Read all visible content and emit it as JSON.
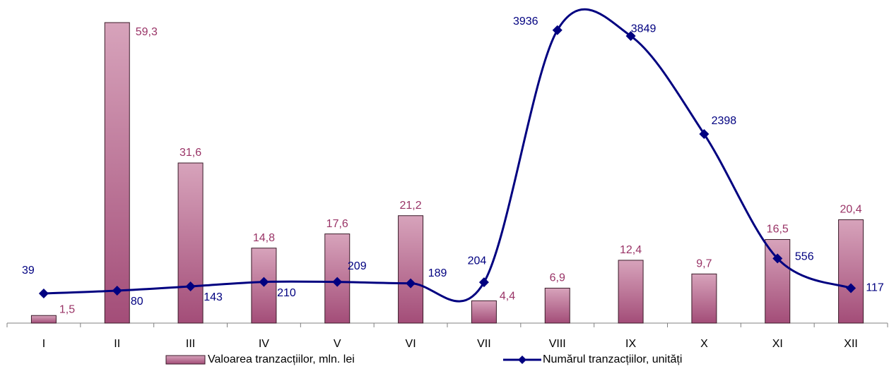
{
  "chart_data": {
    "type": "bar-line",
    "categories": [
      "I",
      "II",
      "III",
      "IV",
      "V",
      "VI",
      "VII",
      "VIII",
      "IX",
      "X",
      "XI",
      "XII"
    ],
    "series": [
      {
        "name": "Valoarea tranzacțiilor, mln. lei",
        "type": "bar",
        "color": "#a34d78",
        "label_color": "#993366",
        "values": [
          1.5,
          59.3,
          31.6,
          14.8,
          17.6,
          21.2,
          4.4,
          6.9,
          12.4,
          9.7,
          16.5,
          20.4
        ],
        "value_labels": [
          "1,5",
          "59,3",
          "31,6",
          "14,8",
          "17,6",
          "21,2",
          "4,4",
          "6,9",
          "12,4",
          "9,7",
          "16,5",
          "20,4"
        ]
      },
      {
        "name": "Numărul tranzacțiilor, unități",
        "type": "line",
        "axis": "y2",
        "color": "#000080",
        "values": [
          39,
          80,
          143,
          210,
          209,
          189,
          204,
          3936,
          3849,
          2398,
          556,
          117
        ]
      }
    ],
    "ylim": [
      0,
      60
    ],
    "y2lim": [
      -400,
      4100
    ],
    "legend": "bottom"
  }
}
